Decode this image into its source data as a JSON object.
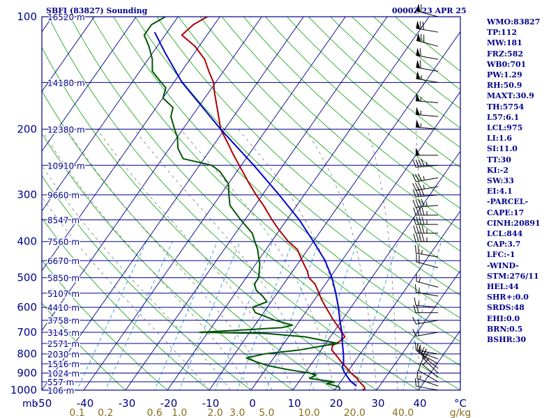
{
  "header": {
    "left_title": "SBFI (83827) Sounding",
    "right_title": "0000Z 23 APR 25"
  },
  "indices": [
    "WMO:83827",
    "TP:112",
    "MW:181",
    "FRZ:582",
    "WB0:701",
    "PW:1.29",
    "RH:50.9",
    "MAXT:30.9",
    "TH:5754",
    "L57:6.1",
    "LCL:975",
    "LI:1.6",
    "SI:11.0",
    "TT:30",
    "KI:-2",
    "SW:33",
    "EI:4.1",
    "-PARCEL-",
    "CAPE:17",
    "CINH:20891",
    "LCL:844",
    "CAP:3.7",
    "LFC:-1",
    "-WIND-",
    "STM:276/11",
    "HEL:44",
    "SHR+:0.0",
    "SRDS:48",
    "EHI:0.0",
    "BRN:0.5",
    "BSHR:30"
  ],
  "colors": {
    "isobar": "#00008b",
    "isotherm": "#00008b",
    "dry_adiabat": "#22aa22",
    "moist_adiabat": "#7a7a7a",
    "mixing_ratio": "#3399cc",
    "temperature": "#aa0000",
    "dewpoint": "#005500",
    "parcel": "#0000cc",
    "text": "#00008b",
    "wind": "#000000"
  },
  "chart_data": {
    "type": "skew-t",
    "title": "",
    "xlabel": "",
    "ylabel": "mb",
    "x_tick_labels": [
      "-50",
      "-40",
      "-30",
      "-20",
      "-10",
      "0",
      "10",
      "20",
      "30",
      "40"
    ],
    "x_end_label": "°C",
    "pressure_labels": [
      "100",
      "200",
      "300",
      "400",
      "500",
      "600",
      "700",
      "800",
      "900",
      "1000"
    ],
    "pressure_levels": [
      100,
      200,
      300,
      400,
      500,
      600,
      700,
      800,
      900,
      1000
    ],
    "ylim": [
      1000,
      100
    ],
    "xlim_temp_at_1000": [
      -50,
      50
    ],
    "height_levels": [
      {
        "p": 100,
        "label": "16520 m"
      },
      {
        "p": 150,
        "label": "14180 m"
      },
      {
        "p": 200,
        "label": "12380 m"
      },
      {
        "p": 250,
        "label": "10910 m"
      },
      {
        "p": 300,
        "label": "9660 m"
      },
      {
        "p": 350,
        "label": "8547 m"
      },
      {
        "p": 400,
        "label": "7560 m"
      },
      {
        "p": 450,
        "label": "6670 m"
      },
      {
        "p": 500,
        "label": "5850 m"
      },
      {
        "p": 550,
        "label": "5107 m"
      },
      {
        "p": 600,
        "label": "4410 m"
      },
      {
        "p": 650,
        "label": "3758 m"
      },
      {
        "p": 700,
        "label": "3145 m"
      },
      {
        "p": 750,
        "label": "2571 m"
      },
      {
        "p": 800,
        "label": "2030 m"
      },
      {
        "p": 850,
        "label": "1516 m"
      },
      {
        "p": 900,
        "label": "1024 m"
      },
      {
        "p": 950,
        "label": "557 m"
      },
      {
        "p": 1000,
        "label": "106 m"
      }
    ],
    "mixing_ratio_labels": [
      {
        "label": "0.1",
        "w": 0.1
      },
      {
        "label": "0.2",
        "w": 0.2
      },
      {
        "label": "0.6",
        "w": 0.6
      },
      {
        "label": "1.0",
        "w": 1.0
      },
      {
        "label": "2.0",
        "w": 2.0
      },
      {
        "label": "3.0",
        "w": 3.0
      },
      {
        "label": "5.0",
        "w": 5.0
      },
      {
        "label": "10.0",
        "w": 10.0
      },
      {
        "label": "20.0",
        "w": 20.0
      },
      {
        "label": "40.0",
        "w": 40.0
      }
    ],
    "mixing_ratio_unit": "g/kg",
    "series": [
      {
        "key": "temperature",
        "points": [
          [
            1000,
            26.5
          ],
          [
            994,
            27.0
          ],
          [
            980,
            26.5
          ],
          [
            950,
            24.5
          ],
          [
            925,
            23.0
          ],
          [
            900,
            21.0
          ],
          [
            870,
            19.0
          ],
          [
            850,
            17.5
          ],
          [
            800,
            14.0
          ],
          [
            780,
            12.5
          ],
          [
            760,
            12.0
          ],
          [
            740,
            13.0
          ],
          [
            720,
            13.5
          ],
          [
            700,
            12.0
          ],
          [
            680,
            10.5
          ],
          [
            650,
            8.0
          ],
          [
            600,
            4.0
          ],
          [
            570,
            1.5
          ],
          [
            550,
            0.0
          ],
          [
            520,
            -2.5
          ],
          [
            500,
            -5.0
          ],
          [
            480,
            -6.5
          ],
          [
            450,
            -9.5
          ],
          [
            420,
            -12.5
          ],
          [
            400,
            -16.0
          ],
          [
            370,
            -20.5
          ],
          [
            350,
            -23.5
          ],
          [
            320,
            -28.0
          ],
          [
            300,
            -31.5
          ],
          [
            280,
            -35.0
          ],
          [
            250,
            -40.5
          ],
          [
            230,
            -44.5
          ],
          [
            220,
            -46.5
          ],
          [
            200,
            -51.0
          ],
          [
            180,
            -54.5
          ],
          [
            160,
            -58.5
          ],
          [
            150,
            -60.5
          ],
          [
            140,
            -63.5
          ],
          [
            130,
            -66.5
          ],
          [
            120,
            -71.0
          ],
          [
            112,
            -76.0
          ],
          [
            105,
            -75.0
          ],
          [
            100,
            -73.0
          ]
        ]
      },
      {
        "key": "dewpoint",
        "points": [
          [
            1000,
            21.0
          ],
          [
            994,
            21.0
          ],
          [
            980,
            20.5
          ],
          [
            960,
            17.0
          ],
          [
            950,
            18.5
          ],
          [
            930,
            12.0
          ],
          [
            910,
            13.0
          ],
          [
            900,
            11.0
          ],
          [
            880,
            5.0
          ],
          [
            860,
            0.0
          ],
          [
            840,
            -3.5
          ],
          [
            820,
            -6.5
          ],
          [
            800,
            -3.0
          ],
          [
            780,
            5.0
          ],
          [
            760,
            10.0
          ],
          [
            750,
            13.0
          ],
          [
            740,
            10.0
          ],
          [
            720,
            4.0
          ],
          [
            705,
            -6.0
          ],
          [
            700,
            -22.0
          ],
          [
            690,
            -12.0
          ],
          [
            680,
            -3.0
          ],
          [
            670,
            -1.0
          ],
          [
            650,
            -6.0
          ],
          [
            620,
            -12.0
          ],
          [
            600,
            -13.5
          ],
          [
            580,
            -11.0
          ],
          [
            560,
            -13.0
          ],
          [
            540,
            -15.5
          ],
          [
            520,
            -17.0
          ],
          [
            500,
            -17.0
          ],
          [
            480,
            -18.0
          ],
          [
            460,
            -19.0
          ],
          [
            440,
            -20.5
          ],
          [
            420,
            -22.0
          ],
          [
            400,
            -24.0
          ],
          [
            380,
            -26.0
          ],
          [
            350,
            -31.0
          ],
          [
            320,
            -36.0
          ],
          [
            300,
            -38.0
          ],
          [
            280,
            -40.0
          ],
          [
            260,
            -44.0
          ],
          [
            250,
            -47.0
          ],
          [
            240,
            -55.0
          ],
          [
            225,
            -58.0
          ],
          [
            210,
            -60.0
          ],
          [
            200,
            -62.0
          ],
          [
            185,
            -65.0
          ],
          [
            175,
            -66.0
          ],
          [
            165,
            -70.0
          ],
          [
            155,
            -71.0
          ],
          [
            150,
            -73.0
          ],
          [
            140,
            -77.0
          ],
          [
            130,
            -79.0
          ],
          [
            120,
            -82.0
          ],
          [
            112,
            -85.0
          ],
          [
            105,
            -85.0
          ],
          [
            100,
            -83.0
          ]
        ]
      },
      {
        "key": "parcel",
        "points": [
          [
            975,
            24.5
          ],
          [
            950,
            22.5
          ],
          [
            900,
            19.5
          ],
          [
            870,
            18.0
          ],
          [
            844,
            17.5
          ],
          [
            800,
            16.0
          ],
          [
            750,
            14.0
          ],
          [
            700,
            12.0
          ],
          [
            650,
            9.5
          ],
          [
            600,
            7.0
          ],
          [
            550,
            4.0
          ],
          [
            500,
            0.5
          ],
          [
            450,
            -4.0
          ],
          [
            400,
            -10.0
          ],
          [
            350,
            -17.0
          ],
          [
            300,
            -26.0
          ],
          [
            250,
            -37.0
          ],
          [
            200,
            -51.0
          ],
          [
            150,
            -68.0
          ],
          [
            125,
            -77.0
          ],
          [
            110,
            -83.0
          ]
        ]
      }
    ],
    "wind_barbs": [
      {
        "p": 1000,
        "dir": 280,
        "spd": 20
      },
      {
        "p": 975,
        "dir": 290,
        "spd": 15
      },
      {
        "p": 950,
        "dir": 300,
        "spd": 10
      },
      {
        "p": 925,
        "dir": 310,
        "spd": 15
      },
      {
        "p": 900,
        "dir": 315,
        "spd": 25
      },
      {
        "p": 875,
        "dir": 310,
        "spd": 20
      },
      {
        "p": 850,
        "dir": 300,
        "spd": 15
      },
      {
        "p": 825,
        "dir": 290,
        "spd": 15
      },
      {
        "p": 800,
        "dir": 280,
        "spd": 15
      },
      {
        "p": 700,
        "dir": 260,
        "spd": 15
      },
      {
        "p": 650,
        "dir": 260,
        "spd": 15
      },
      {
        "p": 620,
        "dir": 270,
        "spd": 20
      },
      {
        "p": 600,
        "dir": 275,
        "spd": 15
      },
      {
        "p": 560,
        "dir": 280,
        "spd": 15
      },
      {
        "p": 530,
        "dir": 285,
        "spd": 15
      },
      {
        "p": 470,
        "dir": 285,
        "spd": 20
      },
      {
        "p": 440,
        "dir": 280,
        "spd": 25
      },
      {
        "p": 400,
        "dir": 270,
        "spd": 45
      },
      {
        "p": 380,
        "dir": 270,
        "spd": 45
      },
      {
        "p": 360,
        "dir": 270,
        "spd": 45
      },
      {
        "p": 340,
        "dir": 270,
        "spd": 45
      },
      {
        "p": 320,
        "dir": 265,
        "spd": 45
      },
      {
        "p": 300,
        "dir": 265,
        "spd": 40
      },
      {
        "p": 285,
        "dir": 260,
        "spd": 35
      },
      {
        "p": 270,
        "dir": 260,
        "spd": 35
      },
      {
        "p": 250,
        "dir": 265,
        "spd": 45
      },
      {
        "p": 235,
        "dir": 270,
        "spd": 50
      },
      {
        "p": 200,
        "dir": 275,
        "spd": 55
      },
      {
        "p": 185,
        "dir": 275,
        "spd": 55
      },
      {
        "p": 170,
        "dir": 275,
        "spd": 55
      },
      {
        "p": 150,
        "dir": 280,
        "spd": 55
      },
      {
        "p": 140,
        "dir": 280,
        "spd": 60
      },
      {
        "p": 130,
        "dir": 280,
        "spd": 60
      },
      {
        "p": 120,
        "dir": 285,
        "spd": 70
      },
      {
        "p": 110,
        "dir": 280,
        "spd": 70
      },
      {
        "p": 100,
        "dir": 285,
        "spd": 60
      }
    ]
  }
}
